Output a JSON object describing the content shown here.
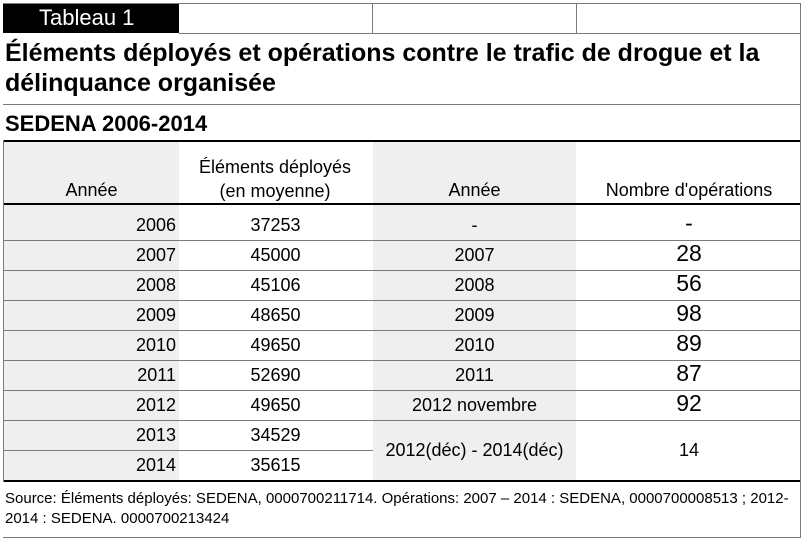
{
  "table_label": "Tableau 1",
  "title": "Éléments déployés et opérations contre le trafic de drogue et la délinquance organisée",
  "subtitle": "SEDENA 2006-2014",
  "headers": {
    "annee_1": "Année",
    "elements": "Éléments déployés (en moyenne)",
    "annee_2": "Année",
    "operations": "Nombre d'opérations"
  },
  "rows": [
    {
      "annee": "2006",
      "elements": "37253",
      "annee_op": "-",
      "operations": "-"
    },
    {
      "annee": "2007",
      "elements": "45000",
      "annee_op": "2007",
      "operations": "28"
    },
    {
      "annee": "2008",
      "elements": "45106",
      "annee_op": "2008",
      "operations": "56"
    },
    {
      "annee": "2009",
      "elements": "48650",
      "annee_op": "2009",
      "operations": "98"
    },
    {
      "annee": "2010",
      "elements": "49650",
      "annee_op": "2010",
      "operations": "89"
    },
    {
      "annee": "2011",
      "elements": "52690",
      "annee_op": "2011",
      "operations": "87"
    },
    {
      "annee": "2012",
      "elements": "49650",
      "annee_op": "2012 novembre",
      "operations": "92"
    },
    {
      "annee": "2013",
      "elements": "34529"
    },
    {
      "annee": "2014",
      "elements": "35615"
    }
  ],
  "merged": {
    "annee_op": "2012(déc) - 2014(déc)",
    "operations": "14"
  },
  "source": "Source: Éléments déployés: SEDENA, 0000700211714. Opérations: 2007 – 2014 : SEDENA, 0000700008513 ; 2012-2014 : SEDENA. 0000700213424"
}
